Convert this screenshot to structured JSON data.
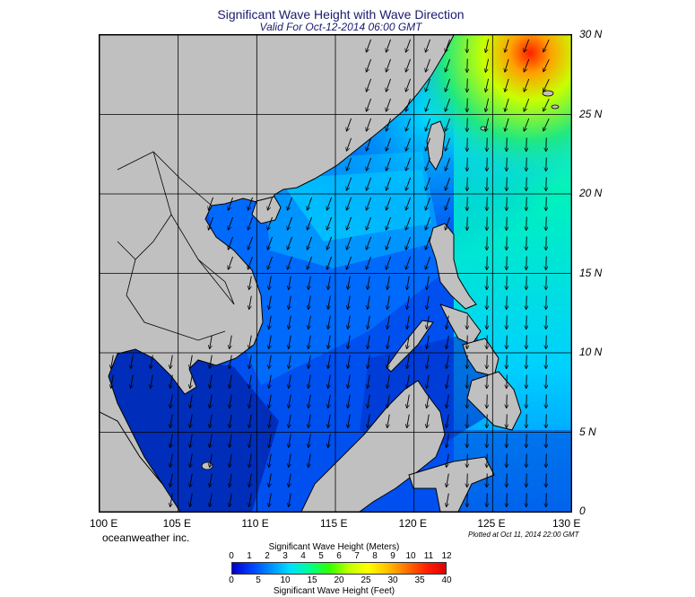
{
  "header": {
    "title": "Significant Wave Height with Wave Direction",
    "subtitle": "Valid For Oct-12-2014 06:00 GMT"
  },
  "map": {
    "region": "South China Sea and Western Pacific",
    "lon_range": [
      100,
      130
    ],
    "lat_range": [
      0,
      30
    ],
    "lat_labels": [
      "30 N",
      "25 N",
      "20 N",
      "15 N",
      "10 N",
      "5 N",
      "0"
    ],
    "lon_labels": [
      "100 E",
      "105 E",
      "110 E",
      "115 E",
      "120 E",
      "125 E",
      "130 E"
    ],
    "land_color": "#c0c0c0",
    "grid": true,
    "arrows": "wave direction arrows on a regular grid"
  },
  "footer": {
    "credit": "oceanweather inc.",
    "plotted": "Plotted at Oct 11, 2014 22:00 GMT"
  },
  "colorbar": {
    "meters_title": "Significant Wave Height (Meters)",
    "feet_title": "Significant Wave Height (Feet)",
    "meters_ticks": [
      "0",
      "1",
      "2",
      "3",
      "4",
      "5",
      "6",
      "7",
      "8",
      "9",
      "10",
      "11",
      "12"
    ],
    "feet_ticks": [
      "0",
      "5",
      "10",
      "15",
      "20",
      "25",
      "30",
      "35",
      "40"
    ],
    "colors": [
      "#0000c8",
      "#0040ff",
      "#0090ff",
      "#00e0ff",
      "#00ff90",
      "#30ff00",
      "#c0ff00",
      "#ffff00",
      "#ffc000",
      "#ff7000",
      "#ff2000",
      "#e00000"
    ]
  }
}
